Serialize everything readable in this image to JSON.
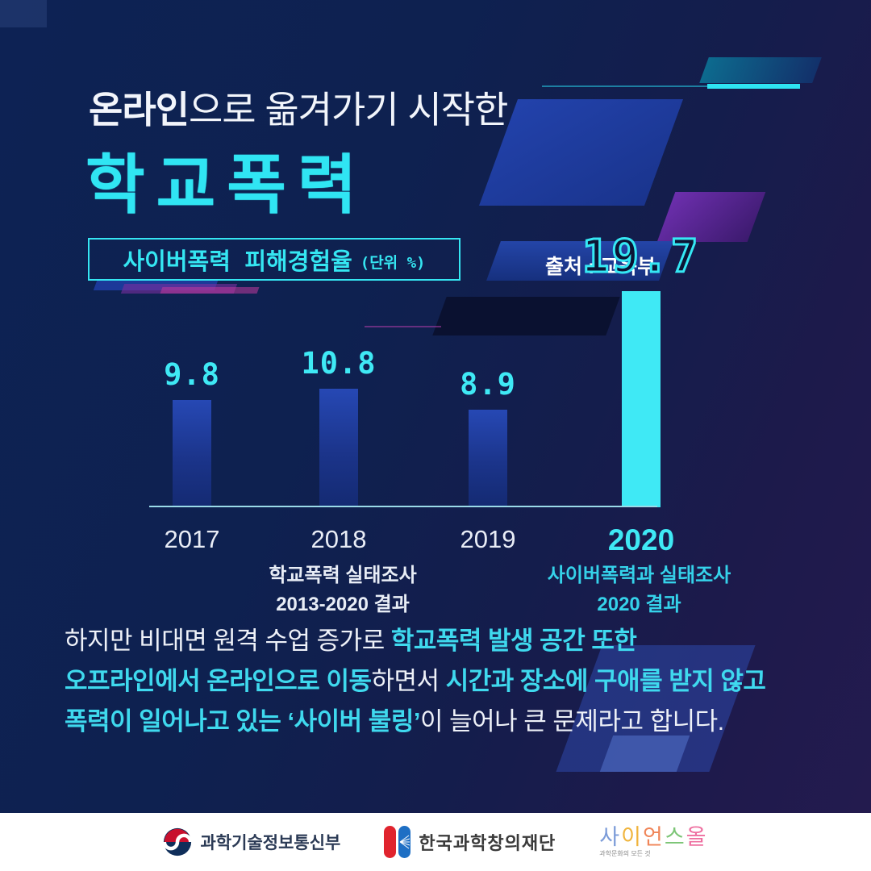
{
  "header": {
    "subtitle_em": "온라인",
    "subtitle_rest": "으로 옮겨가기 시작한",
    "title": "학교폭력"
  },
  "chart": {
    "box_label": "사이버폭력 피해경험율",
    "box_unit": "(단위 %)",
    "source_label": "출처 : 교육부",
    "caption_left": [
      "학교폭력 실태조사",
      "2013-2020 결과"
    ],
    "caption_right": [
      "사이버폭력과 실태조사",
      "2020 결과"
    ]
  },
  "chart_data": {
    "type": "bar",
    "title": "사이버폭력 피해경험율",
    "unit": "%",
    "source": "교육부",
    "categories": [
      "2017",
      "2018",
      "2019",
      "2020"
    ],
    "values": [
      9.8,
      10.8,
      8.9,
      19.7
    ],
    "highlight_index": 3,
    "bar_color": "#1e3ea5",
    "highlight_color": "#3fe9f5",
    "ylim": [
      0,
      20
    ],
    "grid": false,
    "legend": false
  },
  "body": {
    "line1": {
      "a": "하지만 비대면 원격 수업 증가로 ",
      "b": "학교폭력 발생 공간 또한"
    },
    "line2": {
      "a": "오프라인에서 온라인으로 이동",
      "b": "하면서 ",
      "c": "시간과 장소에 구애를 받지 않고"
    },
    "line3": {
      "a": "폭력이 일어나고 있는 ‘사이버 불링’",
      "b": "이 늘어나 큰 문제라고 합니다."
    }
  },
  "footer": {
    "msit_label": "과학기술정보통신부",
    "kofac_label": "한국과학창의재단",
    "scienceall_letters": [
      "사",
      "이",
      "언",
      "스",
      "올"
    ],
    "scienceall_colors": [
      "#7b9bd8",
      "#f0b43c",
      "#f08558",
      "#7cc576",
      "#ee6fa0"
    ],
    "scienceall_tagline": "과학문화의 모든 것"
  },
  "colors": {
    "accent_cyan": "#3fe9f5",
    "background_navy": "#0d2254",
    "background_purple": "#241b4f"
  }
}
